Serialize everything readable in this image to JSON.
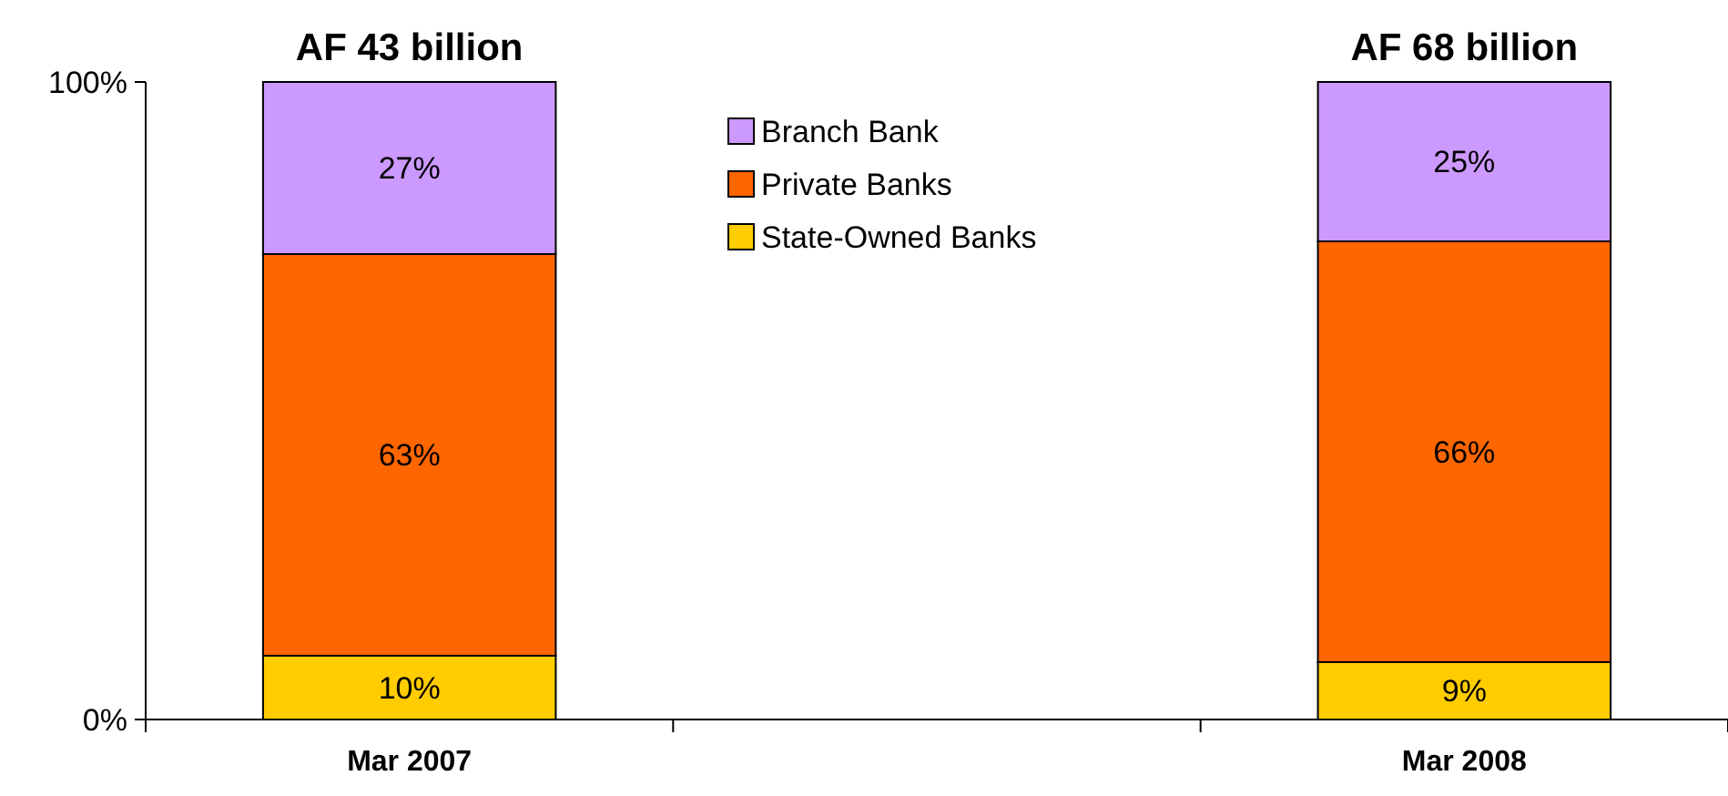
{
  "chart_data": {
    "type": "bar",
    "stacked": true,
    "categories": [
      "Mar 2007",
      null,
      "Mar 2008"
    ],
    "series": [
      {
        "name": "State-Owned Banks",
        "color": "#ffcc00",
        "values": [
          10,
          null,
          9
        ],
        "value_labels": [
          "10%",
          null,
          "9%"
        ]
      },
      {
        "name": "Private Banks",
        "color": "#ff6600",
        "values": [
          63,
          null,
          66
        ],
        "value_labels": [
          "63%",
          null,
          "66%"
        ]
      },
      {
        "name": "Branch Bank",
        "color": "#cc99ff",
        "values": [
          27,
          null,
          25
        ],
        "value_labels": [
          "27%",
          null,
          "25%"
        ]
      }
    ],
    "totals": [
      "AF 43 billion",
      null,
      "AF 68 billion"
    ],
    "ylim": [
      0,
      100
    ],
    "yticks": [
      {
        "value": 0,
        "label": "0%"
      },
      {
        "value": 100,
        "label": "100%"
      }
    ],
    "legend": "top",
    "grid": false
  }
}
